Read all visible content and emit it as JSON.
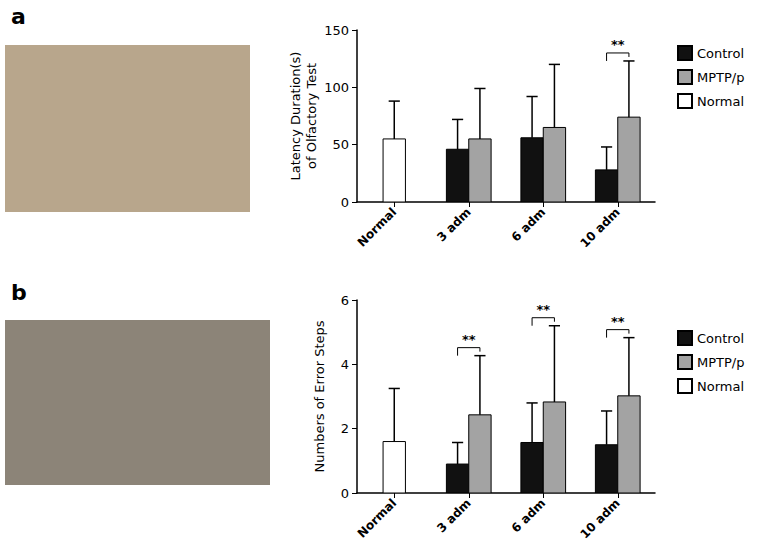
{
  "chart_data": [
    {
      "type": "bar",
      "title": "a",
      "categories": [
        "Normal",
        "3 adm",
        "6 adm",
        "10 adm"
      ],
      "ylabel": "Latency Duration(s)\nof Olfactory Test",
      "ylim": [
        0,
        150
      ],
      "yticks": [
        0,
        50,
        100,
        150
      ],
      "legend": "upper right",
      "series": [
        {
          "name": "Control",
          "color": "#111111",
          "values": [
            null,
            46,
            56,
            28
          ],
          "errors": [
            null,
            26,
            36,
            20
          ]
        },
        {
          "name": "MPTP/p",
          "color": "#a3a3a3",
          "values": [
            null,
            55,
            65,
            74
          ],
          "errors": [
            null,
            44,
            55,
            49
          ]
        },
        {
          "name": "Normal",
          "color": "#ffffff",
          "values": [
            55,
            null,
            null,
            null
          ],
          "errors": [
            33,
            null,
            null,
            null
          ]
        }
      ],
      "significance": [
        {
          "category": "10 adm",
          "label": "**"
        }
      ]
    },
    {
      "type": "bar",
      "title": "b",
      "categories": [
        "Normal",
        "3 adm",
        "6 adm",
        "10 adm"
      ],
      "ylabel": "Numbers of Error Steps",
      "ylim": [
        0,
        6
      ],
      "yticks": [
        0,
        2,
        4,
        6
      ],
      "legend": "upper right",
      "series": [
        {
          "name": "Control",
          "color": "#111111",
          "values": [
            null,
            0.9,
            1.57,
            1.5
          ],
          "errors": [
            null,
            0.67,
            1.23,
            1.05
          ]
        },
        {
          "name": "MPTP/p",
          "color": "#a3a3a3",
          "values": [
            null,
            2.43,
            2.83,
            3.02
          ],
          "errors": [
            null,
            1.84,
            2.37,
            1.81
          ]
        },
        {
          "name": "Normal",
          "color": "#ffffff",
          "values": [
            1.6,
            null,
            null,
            null
          ],
          "errors": [
            1.65,
            null,
            null,
            null
          ]
        }
      ],
      "significance": [
        {
          "category": "3 adm",
          "label": "**"
        },
        {
          "category": "6 adm",
          "label": "**"
        },
        {
          "category": "10 adm",
          "label": "**"
        }
      ]
    }
  ]
}
